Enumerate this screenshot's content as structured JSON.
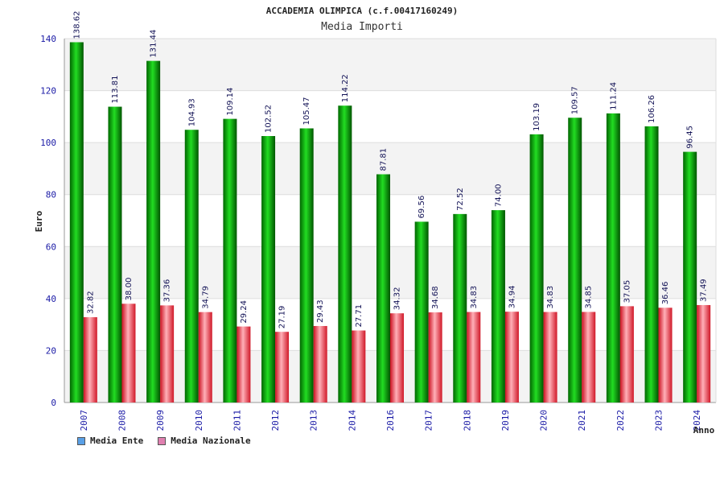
{
  "chart_data": {
    "type": "bar",
    "title": "ACCADEMIA OLIMPICA (c.f.00417160249)",
    "subtitle": "Media Importi",
    "xlabel": "Anno",
    "ylabel": "Euro",
    "ylim": [
      0,
      140
    ],
    "yticks": [
      "0",
      "20",
      "40",
      "60",
      "80",
      "100",
      "120",
      "140"
    ],
    "categories": [
      "2007",
      "2008",
      "2009",
      "2010",
      "2011",
      "2012",
      "2013",
      "2014",
      "2016",
      "2017",
      "2018",
      "2019",
      "2020",
      "2021",
      "2022",
      "2023",
      "2024"
    ],
    "series": [
      {
        "name": "Media Ente",
        "color": "#00b400",
        "values": [
          138.62,
          113.81,
          131.44,
          104.93,
          109.14,
          102.52,
          105.47,
          114.22,
          87.81,
          69.56,
          72.52,
          74.0,
          103.19,
          109.57,
          111.24,
          106.26,
          96.45
        ],
        "labels": [
          "138.62",
          "113.81",
          "131.44",
          "104.93",
          "109.14",
          "102.52",
          "105.47",
          "114.22",
          "87.81",
          "69.56",
          "72.52",
          "74.00",
          "103.19",
          "109.57",
          "111.24",
          "106.26",
          "96.45"
        ]
      },
      {
        "name": "Media Nazionale",
        "color": "#e8323c",
        "values": [
          32.82,
          38.0,
          37.36,
          34.79,
          29.24,
          27.19,
          29.43,
          27.71,
          34.32,
          34.68,
          34.83,
          34.94,
          34.83,
          34.85,
          37.05,
          36.46,
          37.49
        ],
        "labels": [
          "32.82",
          "38.00",
          "37.36",
          "34.79",
          "29.24",
          "27.19",
          "29.43",
          "27.71",
          "34.32",
          "34.68",
          "34.83",
          "34.94",
          "34.83",
          "34.85",
          "37.05",
          "36.46",
          "37.49"
        ]
      }
    ],
    "grid": true,
    "legend_position": "bottom-left"
  },
  "legend": [
    {
      "label": "Media Ente",
      "color": "#5aa0e6"
    },
    {
      "label": "Media Nazionale",
      "color": "#e080b0"
    }
  ]
}
